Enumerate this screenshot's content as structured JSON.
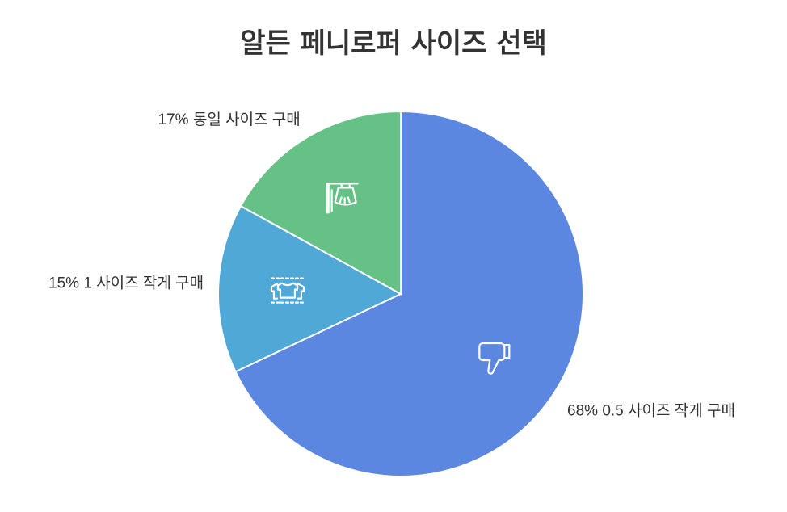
{
  "chart_data": {
    "type": "pie",
    "title": "알든 페니로퍼 사이즈 선택",
    "start_angle_deg": 0,
    "direction": "clockwise",
    "slices": [
      {
        "label": "0.5 사이즈 작게 구매",
        "value": 68,
        "value_label": "68%",
        "color": "#5b87e0",
        "icon": "thumbs-down-icon"
      },
      {
        "label": "1 사이즈 작게 구매",
        "value": 15,
        "value_label": "15%",
        "color": "#4fa8d6",
        "icon": "tshirts-icon"
      },
      {
        "label": "동일 사이즈 구매",
        "value": 17,
        "value_label": "17%",
        "color": "#66c186",
        "icon": "clothing-rack-icon"
      }
    ]
  }
}
